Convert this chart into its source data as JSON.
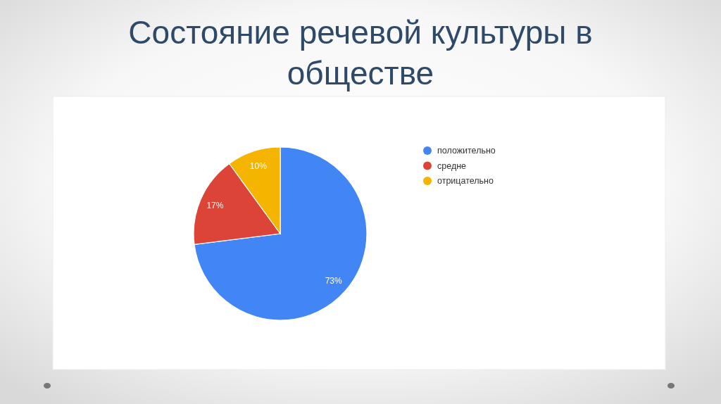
{
  "chart_data": {
    "type": "pie",
    "title": "Состояние речевой культуры в обществе",
    "categories": [
      "положительно",
      "средне",
      "отрицательно"
    ],
    "values": [
      73,
      17,
      10
    ],
    "colors": [
      "#4285f4",
      "#db4437",
      "#f4b400"
    ],
    "value_labels": [
      "73%",
      "17%",
      "10%"
    ],
    "legend": "top right"
  }
}
